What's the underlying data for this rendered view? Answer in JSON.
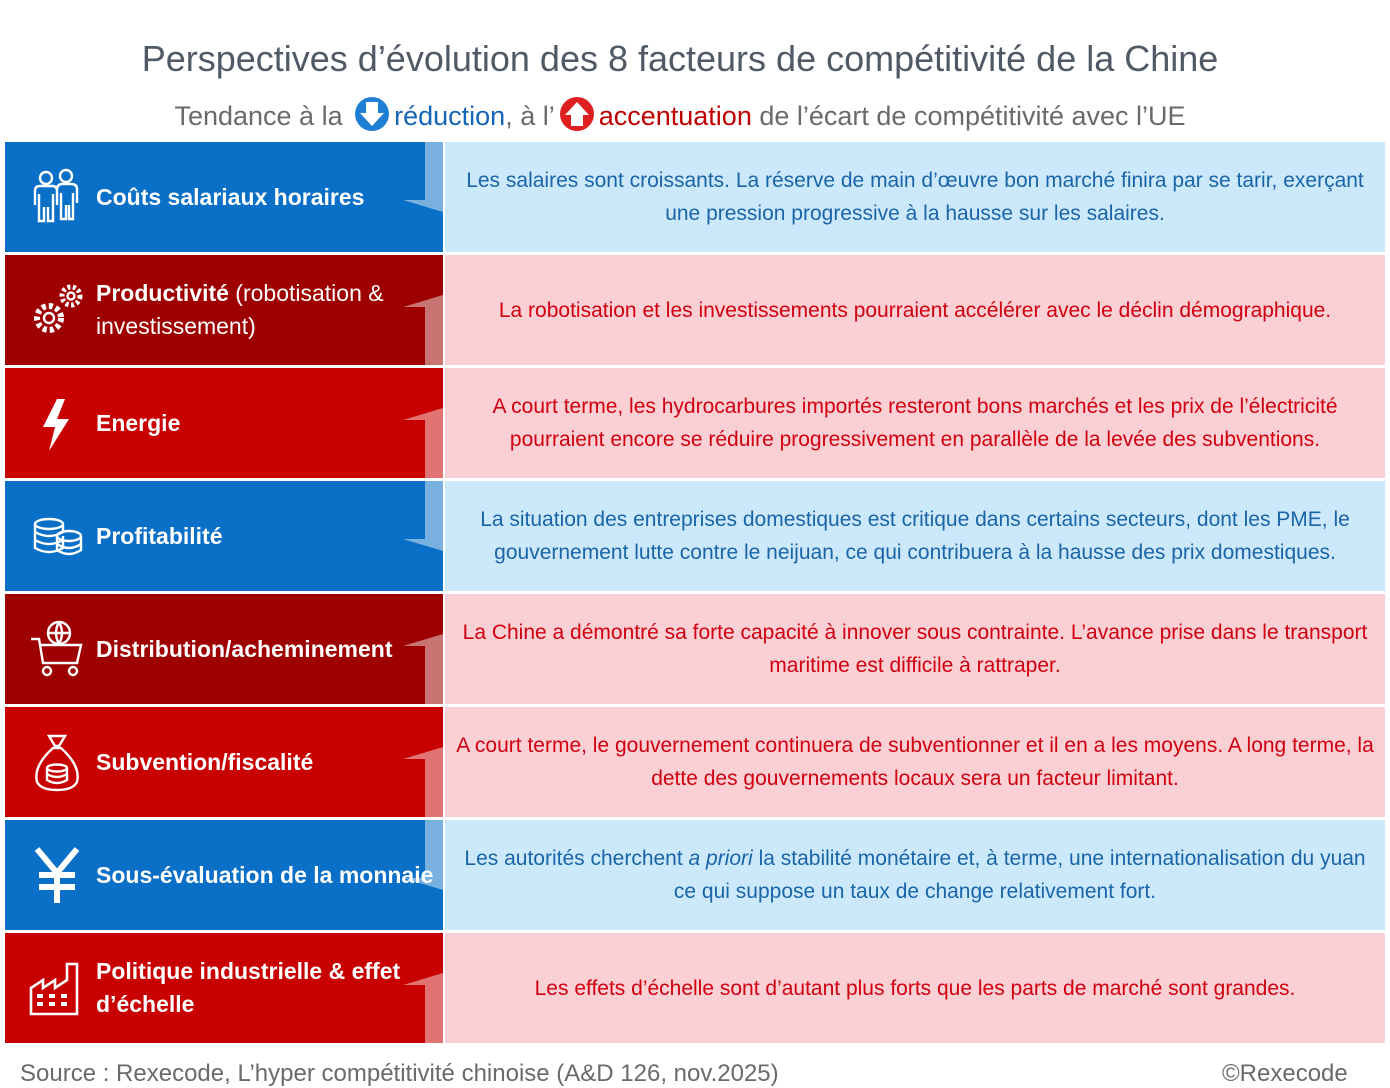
{
  "title": "Perspectives d’évolution des 8 facteurs de compétitivité de la Chine",
  "subtitle": {
    "prefix": "Tendance à la",
    "reduction": "réduction",
    "middle": ", à l’",
    "accentuation": "accentuation",
    "suffix": "de l’écart de compétitivité avec l’UE"
  },
  "colors": {
    "reduction_dark": "#0a6fc7",
    "reduction_light": "#cce9fb",
    "reduction_text": "#1a64a8",
    "accentuation_dark": "#c80000",
    "accentuation_light": "#fbd0d4",
    "accentuation_text": "#d00010"
  },
  "factors": [
    {
      "label": "Coûts salariaux horaires",
      "label_extra": "",
      "trend": "réduction",
      "icon": "workers-icon",
      "text": "Les salaires sont croissants. La réserve de main d’œuvre bon marché finira par se tarir, exerçant une pression progressive à la hausse sur les salaires."
    },
    {
      "label": "Productivité",
      "label_extra": " (robotisation & investissement)",
      "trend": "accentuation",
      "icon": "gears-icon",
      "text": "La robotisation et les investissements pourraient accélérer avec le déclin démographique."
    },
    {
      "label": "Energie",
      "label_extra": "",
      "trend": "accentuation",
      "icon": "lightning-icon",
      "text": "A court terme, les hydrocarbures importés resteront bons marchés et les prix de l’électricité pourraient encore se réduire progressivement en parallèle de la levée des subventions."
    },
    {
      "label": "Profitabilité",
      "label_extra": "",
      "trend": "réduction",
      "icon": "coins-icon",
      "text": "La situation des entreprises domestiques est critique dans certains secteurs, dont les PME, le gouvernement lutte contre le neijuan, ce qui contribuera à la hausse des prix domestiques."
    },
    {
      "label": "Distribution/acheminement",
      "label_extra": "",
      "trend": "accentuation",
      "icon": "globe-cart-icon",
      "text": "La Chine a démontré sa forte capacité à innover sous contrainte. L’avance  prise dans le transport maritime est difficile à rattraper."
    },
    {
      "label": "Subvention/fiscalité",
      "label_extra": "",
      "trend": "accentuation",
      "icon": "money-bag-icon",
      "text": "A court terme, le gouvernement continuera de subventionner et il en a les moyens. A long terme, la dette des gouvernements locaux sera un facteur limitant."
    },
    {
      "label": "Sous-évaluation de la monnaie",
      "label_extra": "",
      "trend": "réduction",
      "icon": "yen-icon",
      "text_before": "Les autorités cherchent ",
      "text_italic": "a priori",
      "text_after": "  la stabilité monétaire et, à terme, une internationalisation du yuan ce qui suppose un taux de change relativement fort."
    },
    {
      "label": "Politique industrielle & effet d’échelle",
      "label_extra": "",
      "trend": "accentuation",
      "icon": "factory-icon",
      "text": "Les effets d’échelle sont d’autant plus forts que les parts de marché sont grandes."
    }
  ],
  "footer": {
    "source": "Source : Rexecode, L’hyper compétitivité chinoise (A&D 126, nov.2025)",
    "copyright": "©Rexecode"
  }
}
